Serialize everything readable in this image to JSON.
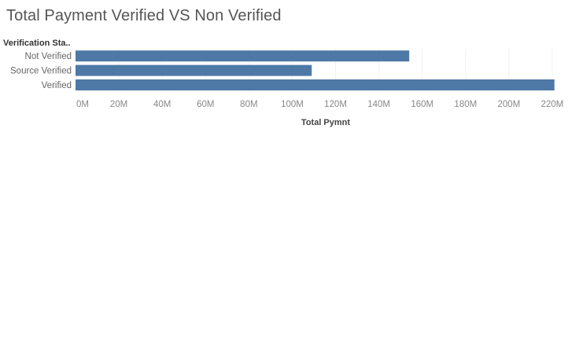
{
  "title": "Total Payment Verified VS Non Verified",
  "chart_data": {
    "type": "bar",
    "orientation": "horizontal",
    "title": "Total Payment Verified VS Non Verified",
    "row_header": "Verification Sta..",
    "xlabel": "Total Pymnt",
    "ylabel": "Verification Sta..",
    "categories": [
      "Not Verified",
      "Source Verified",
      "Verified"
    ],
    "values": [
      154000000,
      109000000,
      221000000
    ],
    "xlim": [
      0,
      225000000
    ],
    "ticks": [
      0,
      20000000,
      40000000,
      60000000,
      80000000,
      100000000,
      120000000,
      140000000,
      160000000,
      180000000,
      200000000,
      220000000
    ],
    "tick_labels": [
      "0M",
      "20M",
      "40M",
      "60M",
      "80M",
      "100M",
      "120M",
      "140M",
      "160M",
      "180M",
      "200M",
      "220M"
    ],
    "bar_color": "#4e79a7",
    "grid": true
  }
}
